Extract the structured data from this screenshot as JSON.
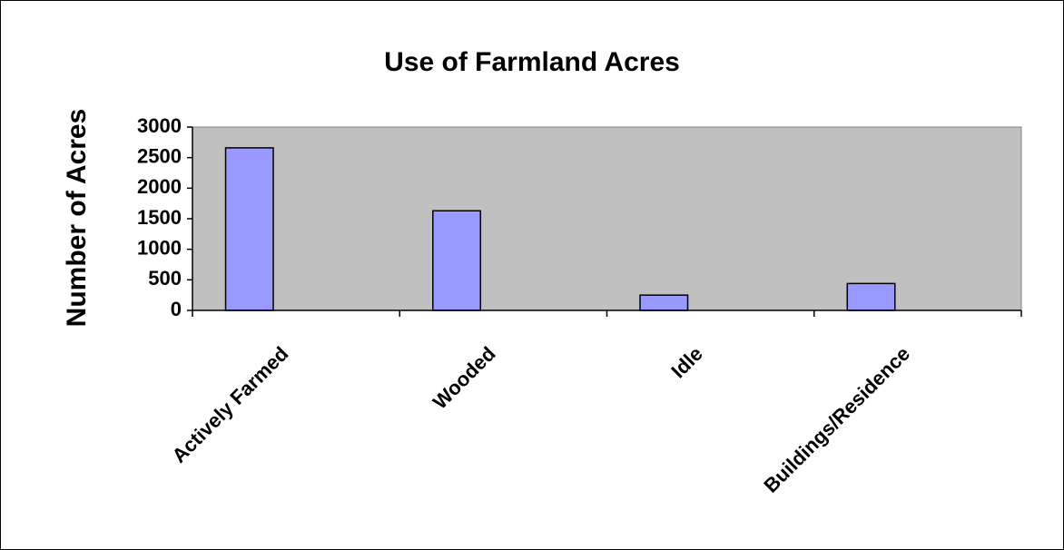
{
  "chart_data": {
    "type": "bar",
    "title": "Use of Farmland Acres",
    "y_label": "Number of Acres",
    "categories": [
      "Actively Farmed",
      "Wooded",
      "Idle",
      "Buildings/Residence"
    ],
    "values": [
      2660,
      1630,
      250,
      440
    ],
    "color": "#9999ff",
    "plot_background": "#c0c0c0",
    "ylim": [
      0,
      3000
    ],
    "yticks": [
      0,
      500,
      1000,
      1500,
      2000,
      2500,
      3000
    ],
    "grid": false
  }
}
